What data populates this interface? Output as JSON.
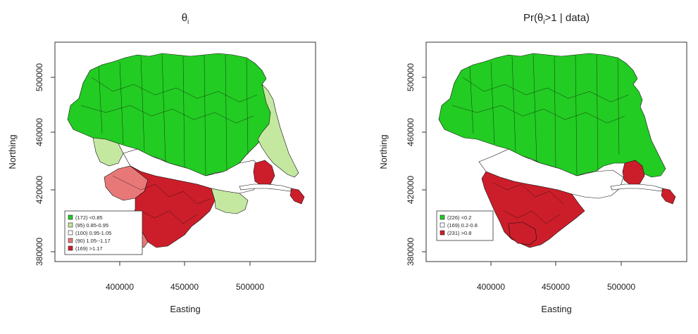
{
  "panels": [
    {
      "id": "theta",
      "title": {
        "main": "θ",
        "sub": "i",
        "rest": ""
      },
      "xlabel": "Easting",
      "ylabel": "Northing",
      "xticks": [
        "400000",
        "450000",
        "500000"
      ],
      "yticks": [
        "380000",
        "420000",
        "460000",
        "500000"
      ],
      "legend": [
        {
          "label": "(172) <0.85",
          "color": "#22cc22"
        },
        {
          "label": "(95) 0.85-0.95",
          "color": "#c4e8a0"
        },
        {
          "label": "(100) 0.95-1.05",
          "color": "#ffffff"
        },
        {
          "label": "(90) 1.05--1.17",
          "color": "#e87878"
        },
        {
          "label": "(169) >1.17",
          "color": "#cc1e2a"
        }
      ]
    },
    {
      "id": "prob",
      "title": {
        "main": "Pr(θ",
        "sub": "i",
        "rest": ">1 | data)"
      },
      "xlabel": "Easting",
      "ylabel": "Northing",
      "xticks": [
        "400000",
        "450000",
        "500000"
      ],
      "yticks": [
        "380000",
        "420000",
        "460000",
        "500000"
      ],
      "legend": [
        {
          "label": "(226) <0.2",
          "color": "#22cc22"
        },
        {
          "label": "(169) 0.2-0.8",
          "color": "#ffffff"
        },
        {
          "label": "(231) >0.8",
          "color": "#cc1e2a"
        }
      ]
    }
  ],
  "colors": {
    "green": "#22cc22",
    "light_green": "#c4e8a0",
    "white": "#ffffff",
    "pink": "#e87878",
    "red": "#cc1e2a"
  }
}
